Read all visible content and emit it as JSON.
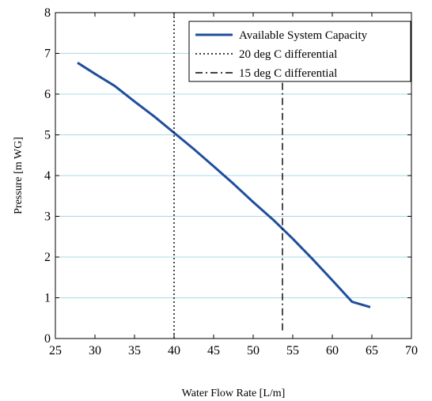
{
  "chart_data": {
    "type": "line",
    "xlabel": "Water Flow Rate [L/m]",
    "ylabel": "Pressure [m WG]",
    "xlim": [
      25,
      70
    ],
    "ylim": [
      0,
      8
    ],
    "xticks": [
      "25",
      "30",
      "35",
      "40",
      "45",
      "50",
      "55",
      "60",
      "65",
      "70"
    ],
    "yticks": [
      "0",
      "1",
      "2",
      "3",
      "4",
      "5",
      "6",
      "7",
      "8"
    ],
    "grid": "horizontal",
    "legend_position": "top-right",
    "series": [
      {
        "name": "Available System Capacity",
        "style": "solid",
        "color": "#1f4e9c",
        "x": [
          27.8,
          30,
          32.5,
          35,
          37.5,
          40,
          42.5,
          45,
          47.5,
          50,
          52.5,
          55,
          57.5,
          60,
          62.5,
          64.8
        ],
        "y": [
          6.77,
          6.5,
          6.2,
          5.82,
          5.45,
          5.05,
          4.65,
          4.23,
          3.8,
          3.35,
          2.92,
          2.45,
          1.95,
          1.43,
          0.9,
          0.77
        ]
      },
      {
        "name": "20 deg C differential",
        "style": "dotted",
        "color": "#000000",
        "x": [
          40,
          40
        ],
        "y": [
          0,
          8
        ]
      },
      {
        "name": "15 deg C differential",
        "style": "dashdot",
        "color": "#000000",
        "x": [
          53.7,
          53.7
        ],
        "y": [
          0.2,
          6.5
        ]
      }
    ]
  }
}
